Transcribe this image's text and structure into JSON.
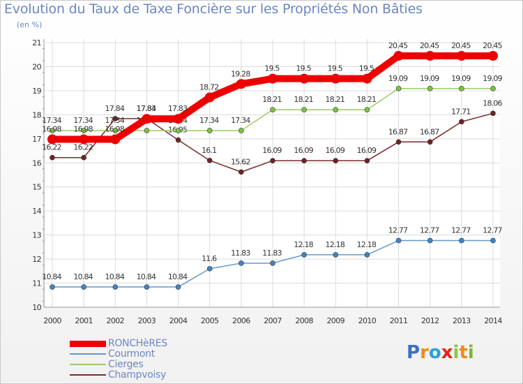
{
  "title": "Evolution du Taux de Taxe Foncière sur les Propriétés Non Bâties",
  "subtitle": "(en %)",
  "chart_data": {
    "type": "line",
    "title": "Evolution du Taux de Taxe Foncière sur les Propriétés Non Bâties",
    "ylabel": "(en %)",
    "xlabel": "",
    "categories": [
      "2000",
      "2001",
      "2002",
      "2003",
      "2004",
      "2005",
      "2006",
      "2007",
      "2008",
      "2009",
      "2010",
      "2011",
      "2012",
      "2013",
      "2014"
    ],
    "ylim": [
      10,
      21
    ],
    "yticks": [
      "10",
      "11",
      "12",
      "13",
      "14",
      "15",
      "16",
      "17",
      "18",
      "19",
      "20",
      "21"
    ],
    "grid": true,
    "series": [
      {
        "name": "Courmont",
        "color": "#6699cc",
        "marker": "#3d85c6",
        "values": [
          10.84,
          10.84,
          10.84,
          10.84,
          10.84,
          11.6,
          11.83,
          11.83,
          12.18,
          12.18,
          12.18,
          12.77,
          12.77,
          12.77,
          12.77
        ],
        "labels": [
          "10.84",
          "10.84",
          "10.84",
          "10.84",
          "10.84",
          "11.6",
          "11.83",
          "11.83",
          "12.18",
          "12.18",
          "12.18",
          "12.77",
          "12.77",
          "12.77",
          "12.77"
        ]
      },
      {
        "name": "Champvoisy",
        "color": "#7a2a2a",
        "marker": "#6d2424",
        "values": [
          16.22,
          16.22,
          17.84,
          17.84,
          16.95,
          16.1,
          15.62,
          16.09,
          16.09,
          16.09,
          16.09,
          16.87,
          16.87,
          17.71,
          18.06
        ],
        "labels": [
          "16.22",
          "16.22",
          "17.84",
          "17.84",
          "16.95",
          "16.1",
          "15.62",
          "16.09",
          "16.09",
          "16.09",
          "16.09",
          "16.87",
          "16.87",
          "17.71",
          "18.06"
        ]
      },
      {
        "name": "Cierges",
        "color": "#99cc66",
        "marker": "#7dc242",
        "values": [
          17.34,
          17.34,
          17.34,
          17.34,
          17.34,
          17.34,
          17.34,
          18.21,
          18.21,
          18.21,
          18.21,
          19.09,
          19.09,
          19.09,
          19.09
        ],
        "labels": [
          "17.34",
          "17.34",
          "17.34",
          "17.34",
          "17.34",
          "17.34",
          "17.34",
          "18.21",
          "18.21",
          "18.21",
          "18.21",
          "19.09",
          "19.09",
          "19.09",
          "19.09"
        ]
      },
      {
        "name": "RONCHèRES",
        "color": "#ee0000",
        "marker": "#ee0000",
        "values": [
          16.98,
          16.98,
          16.98,
          17.83,
          17.83,
          18.72,
          19.28,
          19.5,
          19.5,
          19.5,
          19.5,
          20.45,
          20.45,
          20.45,
          20.45
        ],
        "labels": [
          "16.98",
          "16.98",
          "16.98",
          "17.83",
          "17.83",
          "18.72",
          "19.28",
          "19.5",
          "19.5",
          "19.5",
          "19.5",
          "20.45",
          "20.45",
          "20.45",
          "20.45"
        ]
      }
    ]
  },
  "legend": [
    {
      "label": "RONCHèRES",
      "color": "#ee0000"
    },
    {
      "label": "Courmont",
      "color": "#6699cc"
    },
    {
      "label": "Cierges",
      "color": "#99cc66"
    },
    {
      "label": "Champvoisy",
      "color": "#7a2a2a"
    }
  ],
  "logo": {
    "letters": [
      "P",
      "r",
      "o",
      "x",
      "i",
      "t",
      "i"
    ],
    "colors": [
      "#3a6fc4",
      "#f08a1d",
      "#2b9fd9",
      "#e2231a",
      "#8cc63f",
      "#f08a1d",
      "#7ab33b"
    ]
  }
}
